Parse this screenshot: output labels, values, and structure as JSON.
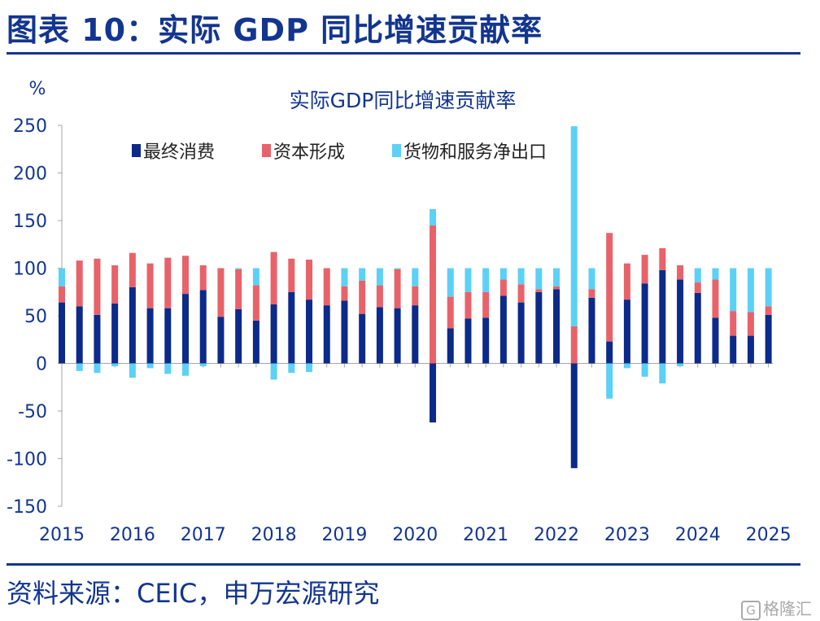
{
  "figure": {
    "title": "图表 10：实际 GDP 同比增速贡献率",
    "source": "资料来源：CEIC，申万宏源研究",
    "watermark": "格隆汇"
  },
  "colors": {
    "brand": "#12358f",
    "consumption": "#0b2a8a",
    "capital": "#e8626a",
    "net_exports": "#5bd1f5",
    "axis": "#a6a6a6",
    "text": "#12358f"
  },
  "chart_data": {
    "type": "bar",
    "stacked": true,
    "title": "实际GDP同比增速贡献率",
    "ylabel": "%",
    "xlabel": "",
    "ylim": [
      -150,
      250
    ],
    "yticks": [
      250,
      200,
      150,
      100,
      50,
      0,
      -50,
      -100,
      -150
    ],
    "grid": false,
    "legend_position": "top",
    "x_tick_labels": [
      "2015",
      "2016",
      "2017",
      "2018",
      "2019",
      "2020",
      "2021",
      "2022",
      "2023",
      "2024",
      "2025"
    ],
    "x_tick_every": 4,
    "series": [
      {
        "name": "最终消费",
        "color": "#0b2a8a",
        "values": [
          64,
          60,
          51,
          63,
          80,
          58,
          58,
          73,
          77,
          49,
          57,
          45,
          62,
          75,
          67,
          61,
          66,
          52,
          59,
          58,
          61,
          -62,
          37,
          47,
          48,
          71,
          64,
          75,
          78,
          -110,
          69,
          23,
          67,
          84,
          98,
          88,
          74,
          48,
          29,
          29,
          51
        ]
      },
      {
        "name": "资本形成",
        "color": "#e8626a",
        "values": [
          17,
          48,
          59,
          40,
          36,
          47,
          53,
          40,
          26,
          51,
          42,
          37,
          55,
          35,
          42,
          39,
          15,
          35,
          23,
          41,
          20,
          145,
          33,
          28,
          27,
          17,
          19,
          3,
          3,
          39,
          9,
          114,
          38,
          30,
          23,
          15,
          11,
          40,
          26,
          25,
          9
        ]
      },
      {
        "name": "货物和服务净出口",
        "color": "#5bd1f5",
        "values": [
          19,
          -8,
          -10,
          -3,
          -15,
          -5,
          -11,
          -13,
          -3,
          0,
          1,
          18,
          -17,
          -10,
          -9,
          0,
          19,
          13,
          18,
          1,
          19,
          17,
          30,
          25,
          25,
          12,
          17,
          22,
          19,
          210,
          22,
          -37,
          -5,
          -14,
          -21,
          -3,
          15,
          12,
          45,
          46,
          40
        ]
      }
    ]
  }
}
